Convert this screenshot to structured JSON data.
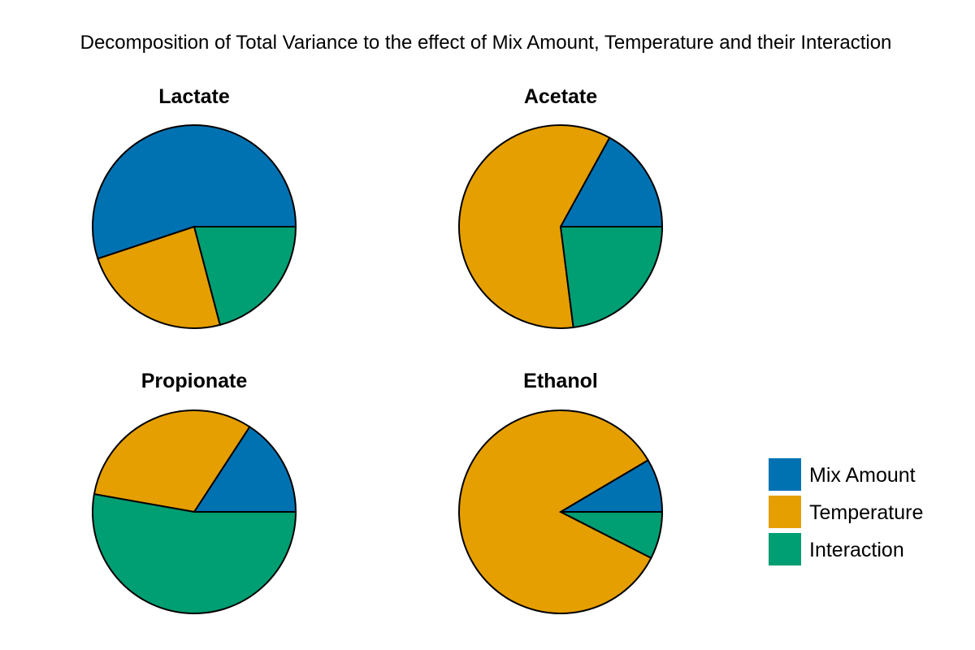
{
  "chart_data": {
    "type": "pie",
    "title": "Decomposition of Total Variance to the effect of Mix Amount, Temperature and their Interaction",
    "series_order": [
      "Mix Amount",
      "Temperature",
      "Interaction"
    ],
    "colors": {
      "Mix Amount": "#0072B2",
      "Temperature": "#E69F00",
      "Interaction": "#009E73"
    },
    "legend_position": "bottom-right",
    "pies": [
      {
        "title": "Lactate",
        "slices": [
          {
            "label": "Mix Amount",
            "value": 0.551
          },
          {
            "label": "Temperature",
            "value": 0.24
          },
          {
            "label": "Interaction",
            "value": 0.209
          }
        ]
      },
      {
        "title": "Acetate",
        "slices": [
          {
            "label": "Mix Amount",
            "value": 0.17
          },
          {
            "label": "Temperature",
            "value": 0.6
          },
          {
            "label": "Interaction",
            "value": 0.23
          }
        ]
      },
      {
        "title": "Propionate",
        "slices": [
          {
            "label": "Mix Amount",
            "value": 0.158
          },
          {
            "label": "Temperature",
            "value": 0.314
          },
          {
            "label": "Interaction",
            "value": 0.528
          }
        ]
      },
      {
        "title": "Ethanol",
        "slices": [
          {
            "label": "Mix Amount",
            "value": 0.085
          },
          {
            "label": "Temperature",
            "value": 0.84
          },
          {
            "label": "Interaction",
            "value": 0.075
          }
        ]
      }
    ]
  }
}
